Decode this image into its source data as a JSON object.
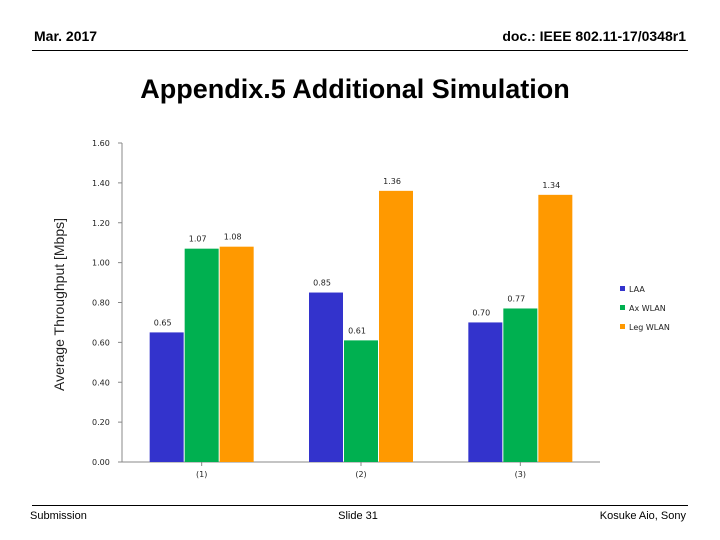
{
  "header": {
    "date": "Mar. 2017",
    "doc": "doc.: IEEE 802.11-17/0348r1"
  },
  "slide_title": "Appendix.5 Additional Simulation",
  "footer": {
    "left": "Submission",
    "center": "Slide 31",
    "right": "Kosuke Aio, Sony"
  },
  "colors": {
    "LAA": "#3333cc",
    "Ax WLAN": "#00b050",
    "Leg WLAN": "#ff9900"
  },
  "chart_data": {
    "type": "bar",
    "title": "",
    "xlabel": "",
    "ylabel": "Average Throughput [Mbps]",
    "ylim": [
      0,
      1.6
    ],
    "yticks": [
      "0.00",
      "0.20",
      "0.40",
      "0.60",
      "0.80",
      "1.00",
      "1.20",
      "1.40",
      "1.60"
    ],
    "categories": [
      "(1)",
      "(2)",
      "(3)"
    ],
    "series": [
      {
        "name": "LAA",
        "values": [
          0.65,
          0.85,
          0.7
        ],
        "labels": [
          "0.65",
          "0.85",
          "0.70"
        ]
      },
      {
        "name": "Ax WLAN",
        "values": [
          1.07,
          0.61,
          0.77
        ],
        "labels": [
          "1.07",
          "0.61",
          "0.77"
        ]
      },
      {
        "name": "Leg WLAN",
        "values": [
          1.08,
          1.36,
          1.34
        ],
        "labels": [
          "1.08",
          "1.36",
          "1.34"
        ]
      }
    ],
    "grid": false,
    "legend_position": "right"
  }
}
